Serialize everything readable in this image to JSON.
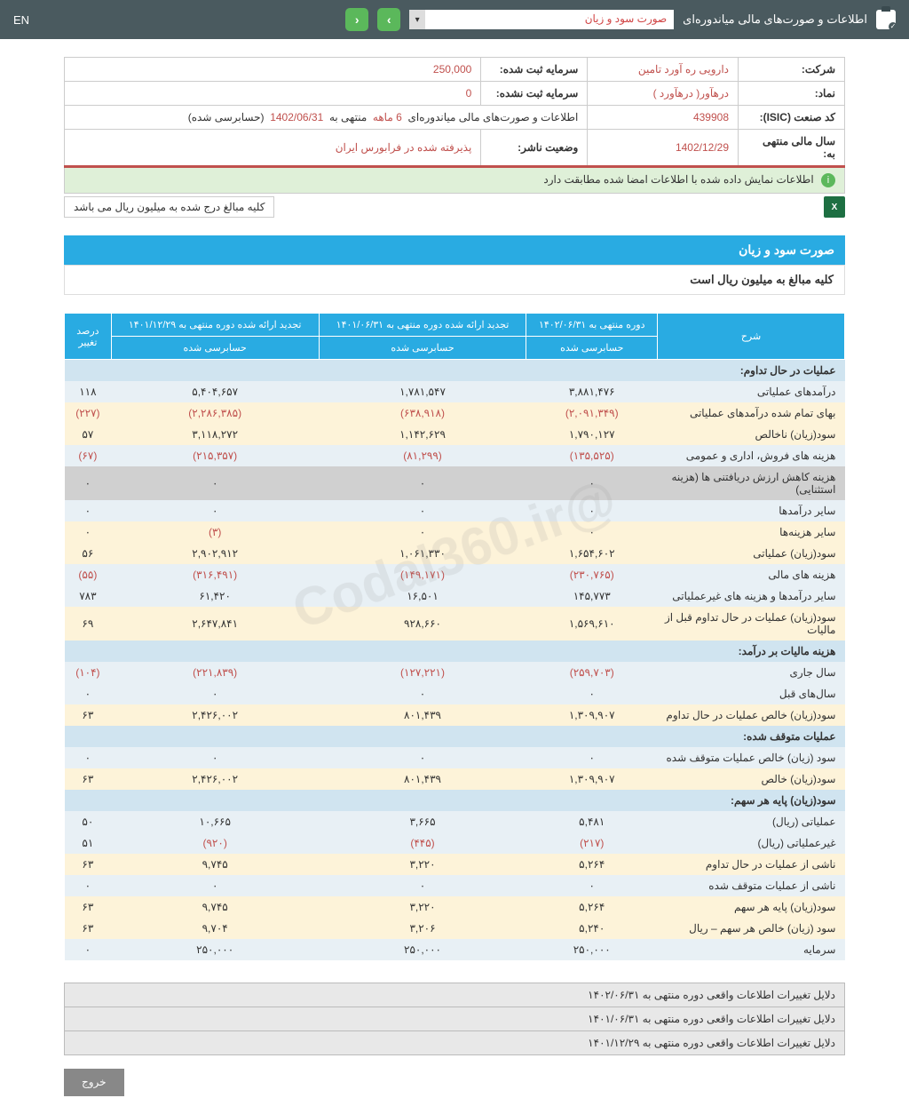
{
  "header": {
    "lang": "EN",
    "title": "اطلاعات و صورت‌های مالی میاندوره‌ای",
    "dropdown": "صورت سود و زیان"
  },
  "info": {
    "company_label": "شرکت:",
    "company": "دارویی ره آورد تامین",
    "symbol_label": "نماد:",
    "symbol": "درهآور( درهآورد )",
    "isic_label": "کد صنعت (ISIC):",
    "isic": "439908",
    "fiscal_label": "سال مالی منتهی به:",
    "fiscal": "1402/12/29",
    "capital_reg_label": "سرمایه ثبت شده:",
    "capital_reg": "250,000",
    "capital_unreg_label": "سرمایه ثبت نشده:",
    "capital_unreg": "0",
    "period_label": "اطلاعات و صورت‌های مالی میاندوره‌ای",
    "period_months": "6 ماهه",
    "period_end": "منتهی به",
    "period_date": "1402/06/31",
    "period_status": "(حسابرسی شده)",
    "publisher_label": "وضعیت ناشر:",
    "publisher": "پذيرفته شده در فرابورس ايران"
  },
  "banner": "اطلاعات نمایش داده شده با اطلاعات امضا شده مطابقت دارد",
  "note": "کلیه مبالغ درج شده به میلیون ریال می باشد",
  "section": {
    "title": "صورت سود و زیان",
    "subtitle": "کلیه مبالغ به میلیون ریال است"
  },
  "headers": {
    "desc": "شرح",
    "col1_top": "دوره منتهی به ۱۴۰۲/۰۶/۳۱",
    "col1_sub": "حسابرسی شده",
    "col2_top": "تجدید ارائه شده دوره منتهی به ۱۴۰۱/۰۶/۳۱",
    "col2_sub": "حسابرسی شده",
    "col3_top": "تجدید ارائه شده دوره منتهی به ۱۴۰۱/۱۲/۲۹",
    "col3_sub": "حسابرسی شده",
    "col4": "درصد تغییر"
  },
  "sections": {
    "s1": "عملیات در حال تداوم:",
    "s2": "هزینه مالیات بر درآمد:",
    "s3": "عملیات متوقف شده:",
    "s4": "سود(زیان) پایه هر سهم:"
  },
  "rows": [
    {
      "label": "درآمدهای عملیاتی",
      "v1": "۳,۸۸۱,۴۷۶",
      "v2": "۱,۷۸۱,۵۴۷",
      "v3": "۵,۴۰۴,۶۵۷",
      "pct": "۱۱۸",
      "cls": "row-alt1"
    },
    {
      "label": "بهای تمام شده درآمدهای عملیاتی",
      "v1": "(۲,۰۹۱,۳۴۹)",
      "v2": "(۶۳۸,۹۱۸)",
      "v3": "(۲,۲۸۶,۳۸۵)",
      "pct": "(۲۲۷)",
      "cls": "row-alt2",
      "neg": true
    },
    {
      "label": "سود(زیان) ناخالص",
      "v1": "۱,۷۹۰,۱۲۷",
      "v2": "۱,۱۴۲,۶۲۹",
      "v3": "۳,۱۱۸,۲۷۲",
      "pct": "۵۷",
      "cls": "row-alt2"
    },
    {
      "label": "هزینه های فروش، اداری و عمومی",
      "v1": "(۱۳۵,۵۲۵)",
      "v2": "(۸۱,۲۹۹)",
      "v3": "(۲۱۵,۳۵۷)",
      "pct": "(۶۷)",
      "cls": "row-alt1",
      "neg": true
    },
    {
      "label": "هزینه کاهش ارزش دریافتنی ها (هزینه استثنایی)",
      "v1": "۰",
      "v2": "۰",
      "v3": "۰",
      "pct": "۰",
      "cls": "row-grey"
    },
    {
      "label": "سایر درآمدها",
      "v1": "۰",
      "v2": "۰",
      "v3": "۰",
      "pct": "۰",
      "cls": "row-alt1"
    },
    {
      "label": "سایر هزینه‌ها",
      "v1": "۰",
      "v2": "۰",
      "v3": "(۳)",
      "pct": "۰",
      "cls": "row-alt2",
      "neg3": true
    },
    {
      "label": "سود(زیان) عملیاتی",
      "v1": "۱,۶۵۴,۶۰۲",
      "v2": "۱,۰۶۱,۳۳۰",
      "v3": "۲,۹۰۲,۹۱۲",
      "pct": "۵۶",
      "cls": "row-alt2"
    },
    {
      "label": "هزینه های مالی",
      "v1": "(۲۳۰,۷۶۵)",
      "v2": "(۱۴۹,۱۷۱)",
      "v3": "(۳۱۶,۴۹۱)",
      "pct": "(۵۵)",
      "cls": "row-alt1",
      "neg": true
    },
    {
      "label": "سایر درآمدها و هزینه های غیرعملیاتی",
      "v1": "۱۴۵,۷۷۳",
      "v2": "۱۶,۵۰۱",
      "v3": "۶۱,۴۲۰",
      "pct": "۷۸۳",
      "cls": "row-alt1"
    },
    {
      "label": "سود(زیان) عملیات در حال تداوم قبل از مالیات",
      "v1": "۱,۵۶۹,۶۱۰",
      "v2": "۹۲۸,۶۶۰",
      "v3": "۲,۶۴۷,۸۴۱",
      "pct": "۶۹",
      "cls": "row-alt2"
    }
  ],
  "rows2": [
    {
      "label": "سال جاری",
      "v1": "(۲۵۹,۷۰۳)",
      "v2": "(۱۲۷,۲۲۱)",
      "v3": "(۲۲۱,۸۳۹)",
      "pct": "(۱۰۴)",
      "cls": "row-alt1",
      "neg": true
    },
    {
      "label": "سال‌های قبل",
      "v1": "۰",
      "v2": "۰",
      "v3": "۰",
      "pct": "۰",
      "cls": "row-alt1"
    },
    {
      "label": "سود(زیان) خالص عملیات در حال تداوم",
      "v1": "۱,۳۰۹,۹۰۷",
      "v2": "۸۰۱,۴۳۹",
      "v3": "۲,۴۲۶,۰۰۲",
      "pct": "۶۳",
      "cls": "row-alt2"
    }
  ],
  "rows3": [
    {
      "label": "سود (زیان) خالص عملیات متوقف شده",
      "v1": "۰",
      "v2": "۰",
      "v3": "۰",
      "pct": "۰",
      "cls": "row-alt1"
    },
    {
      "label": "سود(زیان) خالص",
      "v1": "۱,۳۰۹,۹۰۷",
      "v2": "۸۰۱,۴۳۹",
      "v3": "۲,۴۲۶,۰۰۲",
      "pct": "۶۳",
      "cls": "row-alt2"
    }
  ],
  "rows4": [
    {
      "label": "عملیاتی (ریال)",
      "v1": "۵,۴۸۱",
      "v2": "۳,۶۶۵",
      "v3": "۱۰,۶۶۵",
      "pct": "۵۰",
      "cls": "row-alt1"
    },
    {
      "label": "غیرعملیاتی (ریال)",
      "v1": "(۲۱۷)",
      "v2": "(۴۴۵)",
      "v3": "(۹۲۰)",
      "pct": "۵۱",
      "cls": "row-alt1",
      "neg": true,
      "pctpos": true
    },
    {
      "label": "ناشی از عملیات در حال تداوم",
      "v1": "۵,۲۶۴",
      "v2": "۳,۲۲۰",
      "v3": "۹,۷۴۵",
      "pct": "۶۳",
      "cls": "row-alt2"
    },
    {
      "label": "ناشی از عملیات متوقف شده",
      "v1": "۰",
      "v2": "۰",
      "v3": "۰",
      "pct": "۰",
      "cls": "row-alt1"
    },
    {
      "label": "سود(زیان) پایه هر سهم",
      "v1": "۵,۲۶۴",
      "v2": "۳,۲۲۰",
      "v3": "۹,۷۴۵",
      "pct": "۶۳",
      "cls": "row-alt2"
    },
    {
      "label": "سود (زیان) خالص هر سهم – ریال",
      "v1": "۵,۲۴۰",
      "v2": "۳,۲۰۶",
      "v3": "۹,۷۰۴",
      "pct": "۶۳",
      "cls": "row-alt2"
    },
    {
      "label": "سرمایه",
      "v1": "۲۵۰,۰۰۰",
      "v2": "۲۵۰,۰۰۰",
      "v3": "۲۵۰,۰۰۰",
      "pct": "۰",
      "cls": "row-alt1"
    }
  ],
  "reasons": [
    "دلایل تغییرات اطلاعات واقعی دوره منتهی به ۱۴۰۲/۰۶/۳۱",
    "دلایل تغییرات اطلاعات واقعی دوره منتهی به ۱۴۰۱/۰۶/۳۱",
    "دلایل تغییرات اطلاعات واقعی دوره منتهی به ۱۴۰۱/۱۲/۲۹"
  ],
  "exit": "خروج",
  "watermark": "@Codal360.ir"
}
